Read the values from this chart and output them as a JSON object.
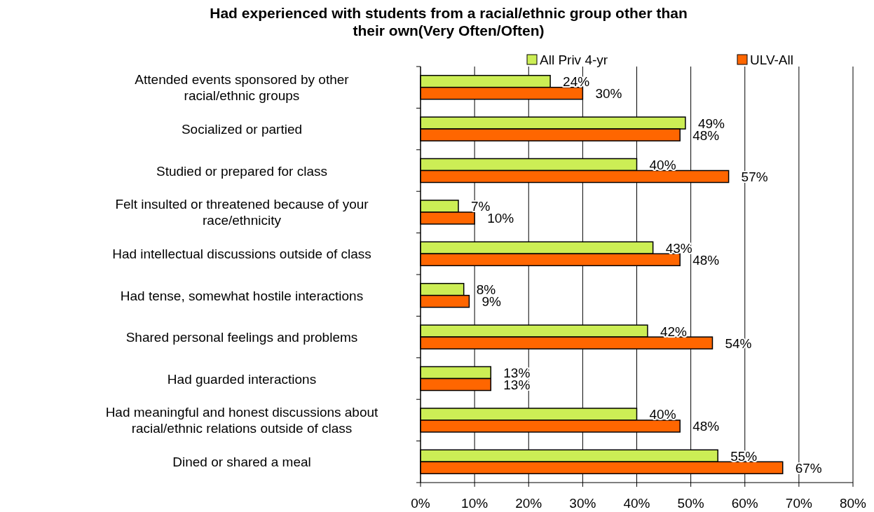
{
  "chart_data": {
    "type": "bar",
    "orientation": "horizontal",
    "title": "Had experienced with students from a racial/ethnic group other than their own(Very Often/Often)",
    "categories": [
      "Attended events sponsored by other racial/ethnic groups",
      "Socialized or partied",
      "Studied or prepared for class",
      "Felt insulted or threatened because of your race/ethnicity",
      "Had intellectual discussions outside of class",
      "Had tense, somewhat hostile interactions",
      "Shared personal feelings and problems",
      "Had guarded interactions",
      "Had meaningful and honest discussions about racial/ethnic relations outside of class",
      "Dined or shared a meal"
    ],
    "series": [
      {
        "name": "All Priv 4-yr",
        "color": "#ccee55",
        "values": [
          24,
          49,
          40,
          7,
          43,
          8,
          42,
          13,
          40,
          55
        ],
        "value_labels": [
          "24%",
          "49%",
          "40%",
          "7%",
          "43%",
          "8%",
          "42%",
          "13%",
          "40%",
          "55%"
        ]
      },
      {
        "name": "ULV-All",
        "color": "#ff6600",
        "values": [
          30,
          48,
          57,
          10,
          48,
          9,
          54,
          13,
          48,
          67
        ],
        "value_labels": [
          "30%",
          "48%",
          "57%",
          "10%",
          "48%",
          "9%",
          "54%",
          "13%",
          "48%",
          "67%"
        ]
      }
    ],
    "xlim": [
      0,
      80
    ],
    "xticks": [
      {
        "value": 0,
        "label": "0%"
      },
      {
        "value": 10,
        "label": "10%"
      },
      {
        "value": 20,
        "label": "20%"
      },
      {
        "value": 30,
        "label": "30%"
      },
      {
        "value": 40,
        "label": "40%"
      },
      {
        "value": 50,
        "label": "50%"
      },
      {
        "value": 60,
        "label": "60%"
      },
      {
        "value": 70,
        "label": "70%"
      },
      {
        "value": 80,
        "label": "80%"
      }
    ],
    "grid": "x",
    "legend": "top right"
  }
}
